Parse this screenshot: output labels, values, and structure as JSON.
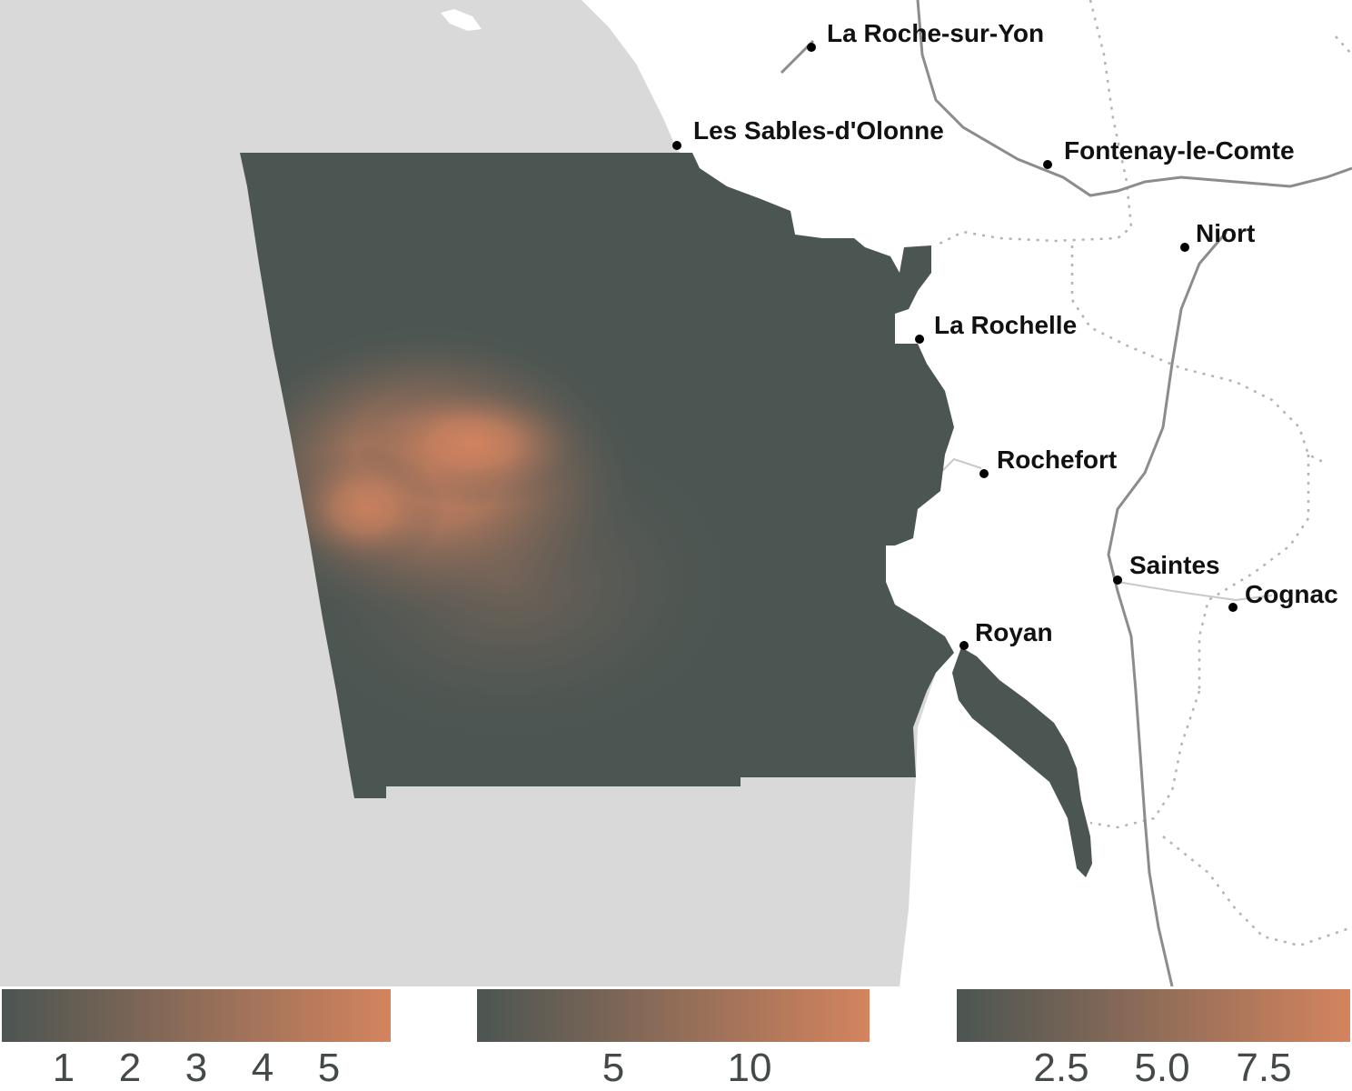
{
  "map": {
    "cities": [
      {
        "name": "La Roche-sur-Yon"
      },
      {
        "name": "Les Sables-d'Olonne"
      },
      {
        "name": "Fontenay-le-Comte"
      },
      {
        "name": "Niort"
      },
      {
        "name": "La Rochelle"
      },
      {
        "name": "Rochefort"
      },
      {
        "name": "Saintes"
      },
      {
        "name": "Cognac"
      },
      {
        "name": "Royan"
      }
    ]
  },
  "colors": {
    "sea": "#d9d9d9",
    "land": "#ffffff",
    "roads": "#8c8c8c",
    "boundaries": "#b3b3b3",
    "field_low": "#4b5552",
    "field_high": "#d4845e"
  },
  "legends": [
    {
      "ticks": [
        "1",
        "2",
        "3",
        "4",
        "5"
      ]
    },
    {
      "ticks": [
        "5",
        "10"
      ]
    },
    {
      "ticks": [
        "2.5",
        "5.0",
        "7.5"
      ]
    }
  ]
}
